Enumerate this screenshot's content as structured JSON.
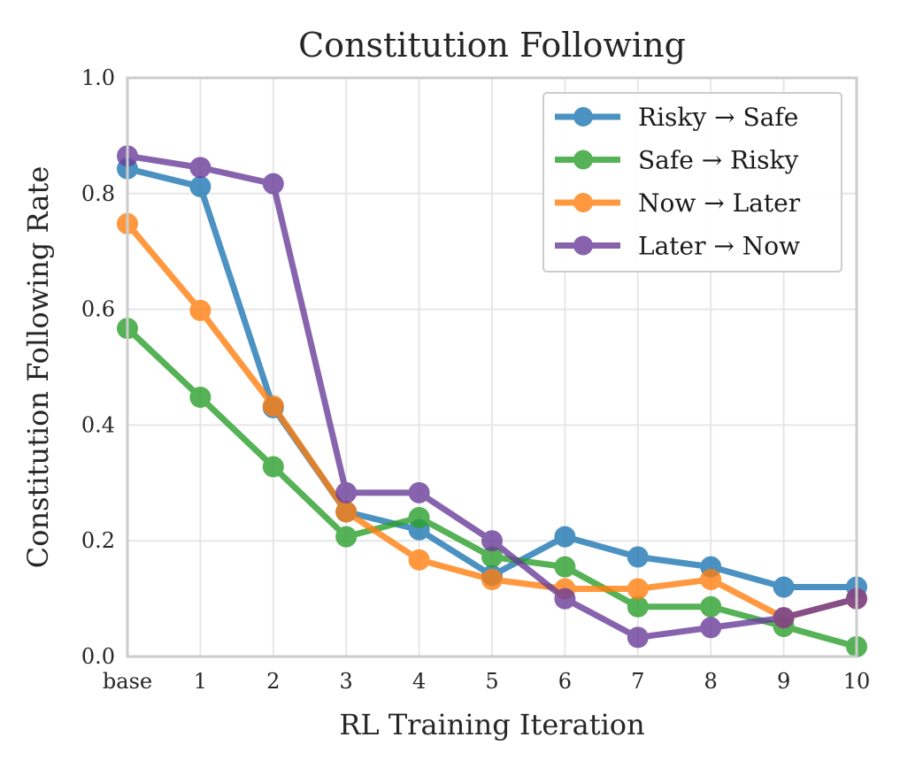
{
  "chart_data": {
    "type": "line",
    "title": "Constitution Following",
    "xlabel": "RL Training Iteration",
    "ylabel": "Constitution Following Rate",
    "categories": [
      "base",
      "1",
      "2",
      "3",
      "4",
      "5",
      "6",
      "7",
      "8",
      "9",
      "10"
    ],
    "xlim": [
      0,
      10
    ],
    "ylim": [
      0.0,
      1.0
    ],
    "yticks": [
      "0.0",
      "0.2",
      "0.4",
      "0.6",
      "0.8",
      "1.0"
    ],
    "grid": true,
    "legend_position": "top-right",
    "series": [
      {
        "name": "Risky → Safe",
        "color": "#1f77b4",
        "values": [
          0.843,
          0.812,
          0.43,
          0.25,
          0.219,
          0.14,
          0.207,
          0.172,
          0.155,
          0.12,
          0.12
        ]
      },
      {
        "name": "Safe → Risky",
        "color": "#2ca02c",
        "values": [
          0.567,
          0.448,
          0.328,
          0.207,
          0.24,
          0.172,
          0.155,
          0.086,
          0.086,
          0.052,
          0.017
        ]
      },
      {
        "name": "Now → Later",
        "color": "#ff7f0e",
        "values": [
          0.748,
          0.598,
          0.433,
          0.25,
          0.167,
          0.133,
          0.117,
          0.117,
          0.133,
          0.067,
          0.1
        ]
      },
      {
        "name": "Later → Now",
        "color": "#6a3d9a",
        "values": [
          0.865,
          0.845,
          0.817,
          0.283,
          0.283,
          0.2,
          0.1,
          0.033,
          0.05,
          0.067,
          0.1
        ]
      }
    ]
  }
}
